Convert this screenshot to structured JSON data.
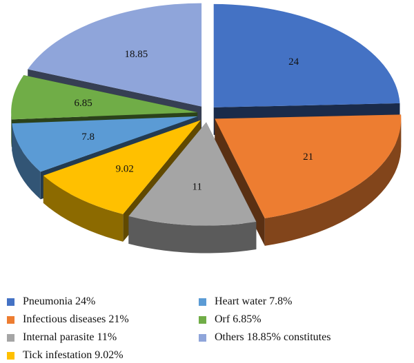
{
  "chart_data": {
    "type": "pie",
    "style": "3d-exploded",
    "slices": [
      {
        "label": "Pneumonia 24%",
        "value": 24,
        "display": "24",
        "color": "#4472C4"
      },
      {
        "label": "Infectious diseases 21%",
        "value": 21,
        "display": "21",
        "color": "#ED7D31"
      },
      {
        "label": "Internal parasite 11%",
        "value": 11,
        "display": "11",
        "color": "#A5A5A5"
      },
      {
        "label": "Tick infestation 9.02%",
        "value": 9.02,
        "display": "9.02",
        "color": "#FFC000"
      },
      {
        "label": "Heart water 7.8%",
        "value": 7.8,
        "display": "7.8",
        "color": "#5B9BD5"
      },
      {
        "label": "Orf 6.85%",
        "value": 6.85,
        "display": "6.85",
        "color": "#70AD47"
      },
      {
        "label": "Others 18.85% constitutes",
        "value": 18.85,
        "display": "18.85",
        "color": "#8FA5DA"
      }
    ],
    "legend_position": "bottom",
    "legend_columns": 2
  }
}
